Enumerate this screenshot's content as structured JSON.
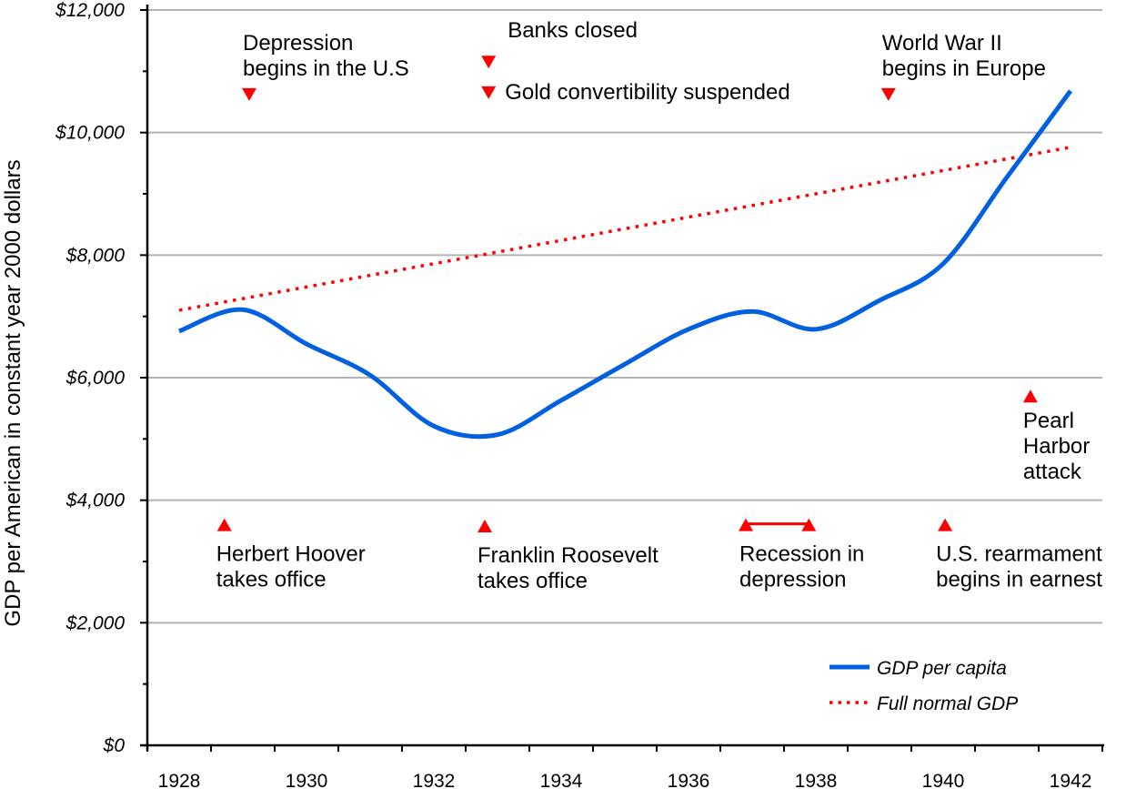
{
  "chart_data": {
    "type": "line",
    "title": "",
    "xlabel": "",
    "ylabel": "GDP per American in constant year 2000 dollars",
    "ylim": [
      0,
      12000
    ],
    "yticks": [
      0,
      2000,
      4000,
      6000,
      8000,
      10000,
      12000
    ],
    "ytick_labels": [
      "$0",
      "$2,000",
      "$4,000",
      "$6,000",
      "$8,000",
      "$10,000",
      "$12,000"
    ],
    "xticks": [
      1928,
      1930,
      1932,
      1934,
      1936,
      1938,
      1940,
      1942
    ],
    "xtick_labels": [
      "1928",
      "1930",
      "1932",
      "1934",
      "1936",
      "1938",
      "1940",
      "1942"
    ],
    "grid": true,
    "legend_position": "bottom-right",
    "colors": {
      "gdp": "#0060e0",
      "normal": "#ff0000",
      "marker": "#ff0000",
      "grid": "#b3b3b3"
    },
    "series": [
      {
        "name": "GDP per capita",
        "style": "solid",
        "x": [
          1928,
          1929,
          1930,
          1931,
          1932,
          1933,
          1934,
          1935,
          1936,
          1937,
          1938,
          1939,
          1940,
          1941,
          1942
        ],
        "values": [
          6760,
          7110,
          6550,
          6040,
          5210,
          5070,
          5630,
          6220,
          6790,
          7080,
          6790,
          7260,
          7860,
          9270,
          10680
        ]
      },
      {
        "name": "Full normal GDP",
        "style": "dotted",
        "x": [
          1928,
          1942
        ],
        "values": [
          7100,
          9760
        ]
      }
    ],
    "annotations": [
      {
        "lines": [
          "Depression",
          "begins in the U.S"
        ],
        "marker": "down",
        "x": 1929.1,
        "y": 10620
      },
      {
        "lines": [
          "Banks closed"
        ],
        "marker": "down",
        "x": 1932.86,
        "y": 11150
      },
      {
        "lines": [
          "Gold convertibility suspended"
        ],
        "marker": "down",
        "x": 1932.86,
        "y": 10650
      },
      {
        "lines": [
          "World War II",
          "begins in Europe"
        ],
        "marker": "down",
        "x": 1939.14,
        "y": 10620
      },
      {
        "lines": [
          "Herbert Hoover",
          "takes office"
        ],
        "marker": "up",
        "x": 1928.71,
        "y": 3600
      },
      {
        "lines": [
          "Franklin Roosevelt",
          "takes office"
        ],
        "marker": "up",
        "x": 1932.8,
        "y": 3580
      },
      {
        "lines": [
          "Recession in",
          "depression"
        ],
        "marker": "range",
        "x": 1936.9,
        "x2": 1937.89,
        "y": 3600
      },
      {
        "lines": [
          "U.S. rearmament",
          "begins in earnest"
        ],
        "marker": "up",
        "x": 1940.03,
        "y": 3600
      },
      {
        "lines": [
          "Pearl",
          "Harbor",
          "attack"
        ],
        "marker": "up",
        "x": 1941.37,
        "y": 5700
      }
    ]
  }
}
